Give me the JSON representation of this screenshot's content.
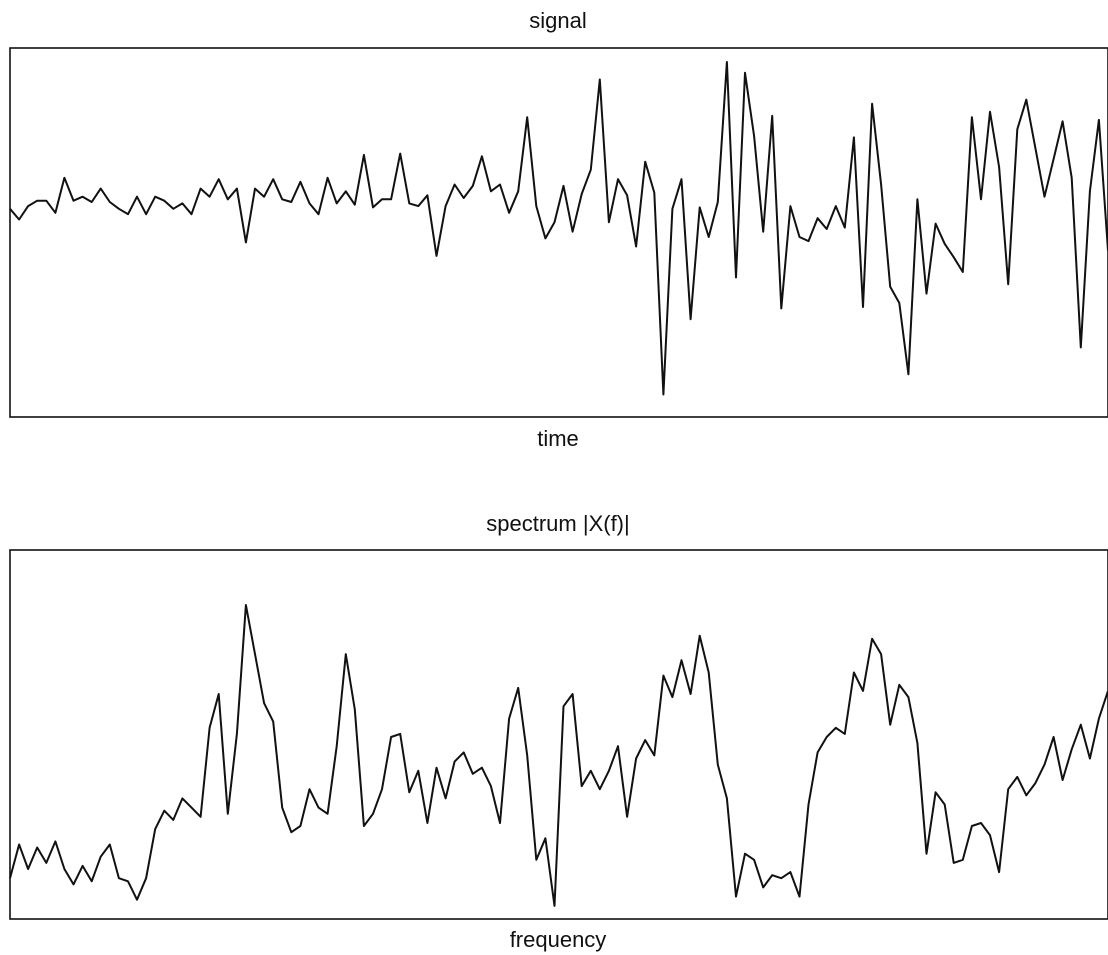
{
  "chart_data": [
    {
      "type": "line",
      "title": "signal",
      "xlabel": "time",
      "ylabel": "",
      "axes_ticks": "none",
      "grid": false,
      "x": [
        0,
        3,
        6,
        9,
        12,
        15,
        18,
        21,
        24,
        27,
        30,
        33,
        36,
        39,
        42,
        45,
        48,
        51,
        54,
        57,
        60,
        63,
        66,
        69,
        72,
        75,
        78,
        81,
        84,
        87,
        90,
        93,
        96,
        99,
        102,
        105,
        108,
        111,
        114,
        117,
        120,
        123,
        126,
        129,
        132,
        135,
        138,
        141,
        144,
        147,
        150,
        153,
        156,
        159,
        162,
        165,
        168,
        171,
        174,
        177,
        180,
        183,
        186,
        189,
        192,
        195,
        198,
        201,
        204,
        207,
        210,
        213,
        216,
        219,
        222,
        225,
        228,
        231,
        234,
        237,
        240,
        243,
        246,
        249,
        252,
        255,
        258,
        261,
        264,
        267,
        270,
        273,
        276,
        279,
        282,
        285,
        288,
        291,
        294,
        297,
        300,
        303,
        306,
        309,
        312,
        315,
        318,
        321,
        324,
        327,
        330,
        333,
        336,
        339,
        342,
        345,
        348,
        351,
        354,
        357,
        360,
        363
      ],
      "values": [
        0.03,
        -0.05,
        0.05,
        0.09,
        0.09,
        0.0,
        0.26,
        0.09,
        0.12,
        0.08,
        0.18,
        0.08,
        0.03,
        -0.01,
        0.12,
        -0.01,
        0.12,
        0.09,
        0.03,
        0.07,
        -0.01,
        0.18,
        0.12,
        0.25,
        0.1,
        0.18,
        -0.22,
        0.18,
        0.12,
        0.25,
        0.1,
        0.08,
        0.23,
        0.07,
        -0.01,
        0.26,
        0.07,
        0.16,
        0.06,
        0.43,
        0.04,
        0.1,
        0.1,
        0.44,
        0.07,
        0.05,
        0.13,
        -0.32,
        0.05,
        0.21,
        0.11,
        0.2,
        0.42,
        0.16,
        0.21,
        0.0,
        0.16,
        0.71,
        0.05,
        -0.19,
        -0.07,
        0.2,
        -0.14,
        0.14,
        0.32,
        0.99,
        -0.07,
        0.25,
        0.13,
        -0.25,
        0.38,
        0.15,
        -1.35,
        0.03,
        0.25,
        -0.79,
        0.04,
        -0.18,
        0.08,
        1.12,
        -0.48,
        1.04,
        0.57,
        -0.14,
        0.72,
        -0.71,
        0.05,
        -0.18,
        -0.21,
        -0.04,
        -0.12,
        0.05,
        -0.11,
        0.56,
        -0.7,
        0.81,
        0.21,
        -0.55,
        -0.67,
        -1.2,
        0.1,
        -0.6,
        -0.08,
        -0.23,
        -0.33,
        -0.44,
        0.71,
        0.1,
        0.75,
        0.34,
        -0.53,
        0.62,
        0.84,
        0.48,
        0.12,
        0.4,
        0.68,
        0.26,
        -1.0,
        0.16,
        0.69,
        -0.28
      ],
      "note_shape": "noisy oscillation whose amplitude grows toward the center and decays toward both ends"
    },
    {
      "type": "line",
      "title": "spectrum  |X(f)|",
      "xlabel": "frequency",
      "ylabel": "",
      "axes_ticks": "none",
      "grid": false,
      "x": [
        0,
        3,
        6,
        9,
        12,
        15,
        18,
        21,
        24,
        27,
        30,
        33,
        36,
        39,
        42,
        45,
        48,
        51,
        54,
        57,
        60,
        63,
        66,
        69,
        72,
        75,
        78,
        81,
        84,
        87,
        90,
        93,
        96,
        99,
        102,
        105,
        108,
        111,
        114,
        117,
        120,
        123,
        126,
        129,
        132,
        135,
        138,
        141,
        144,
        147,
        150,
        153,
        156,
        159,
        162,
        165,
        168,
        171,
        174,
        177,
        180,
        183,
        186,
        189,
        192,
        195,
        198,
        201,
        204,
        207,
        210,
        213,
        216,
        219,
        222,
        225,
        228,
        231,
        234,
        237,
        240,
        243,
        246,
        249,
        252,
        255,
        258,
        261,
        264,
        267,
        270,
        273,
        276,
        279,
        282,
        285,
        288,
        291,
        294,
        297,
        300,
        303,
        306,
        309,
        312,
        315,
        318,
        321,
        324,
        327,
        330,
        333,
        336,
        339,
        342,
        345,
        348,
        351,
        354,
        357,
        360,
        363
      ],
      "values": [
        0.09,
        0.2,
        0.12,
        0.19,
        0.14,
        0.21,
        0.12,
        0.07,
        0.13,
        0.08,
        0.16,
        0.2,
        0.09,
        0.08,
        0.02,
        0.09,
        0.25,
        0.31,
        0.28,
        0.35,
        0.32,
        0.29,
        0.58,
        0.69,
        0.3,
        0.56,
        0.98,
        0.82,
        0.66,
        0.6,
        0.32,
        0.24,
        0.26,
        0.38,
        0.32,
        0.3,
        0.52,
        0.82,
        0.64,
        0.26,
        0.3,
        0.38,
        0.55,
        0.56,
        0.37,
        0.44,
        0.27,
        0.45,
        0.35,
        0.47,
        0.5,
        0.43,
        0.45,
        0.39,
        0.27,
        0.61,
        0.71,
        0.49,
        0.15,
        0.22,
        0.0,
        0.65,
        0.69,
        0.39,
        0.44,
        0.38,
        0.44,
        0.52,
        0.29,
        0.48,
        0.54,
        0.49,
        0.75,
        0.68,
        0.8,
        0.69,
        0.88,
        0.76,
        0.46,
        0.35,
        0.03,
        0.17,
        0.15,
        0.06,
        0.1,
        0.09,
        0.11,
        0.03,
        0.33,
        0.5,
        0.55,
        0.58,
        0.56,
        0.76,
        0.7,
        0.87,
        0.82,
        0.59,
        0.72,
        0.68,
        0.53,
        0.17,
        0.37,
        0.33,
        0.14,
        0.15,
        0.26,
        0.27,
        0.23,
        0.11,
        0.38,
        0.42,
        0.36,
        0.4,
        0.46,
        0.55,
        0.41,
        0.51,
        0.59,
        0.48,
        0.61,
        0.7
      ],
      "note_shape": "multiple narrow peaks on the left and a broad hump on the right"
    }
  ]
}
